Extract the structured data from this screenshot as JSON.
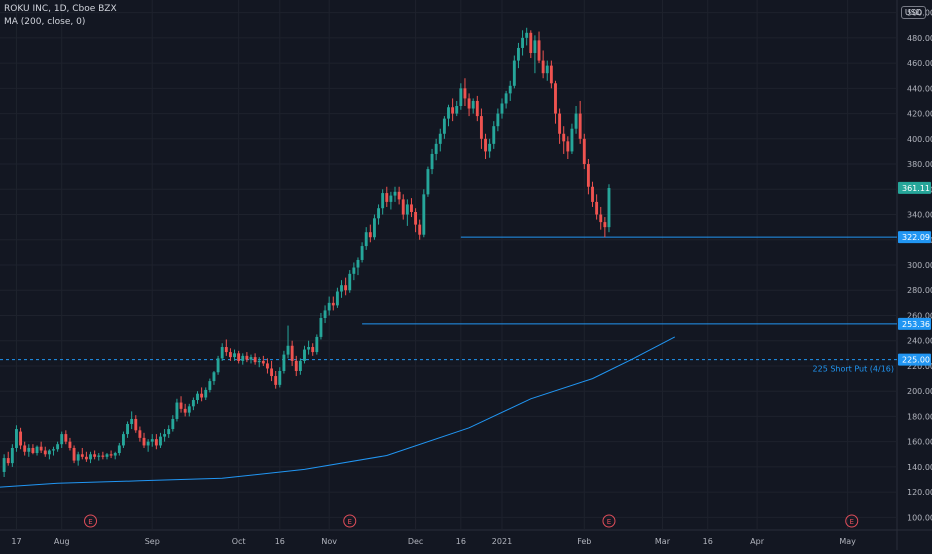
{
  "header": {
    "symbol_line": "ROKU INC, 1D, Cboe BZX",
    "indicator_line": "MA (200, close, 0)",
    "currency": "USD"
  },
  "colors": {
    "background": "#131722",
    "grid": "#1e222d",
    "up": "#26a69a",
    "down": "#ef5350",
    "ma": "#2196f3",
    "level": "#2196f3",
    "axis_text": "#b2b5be"
  },
  "chart_data": {
    "type": "candlestick",
    "title": "ROKU INC, 1D, Cboe BZX",
    "ylim": [
      90,
      510
    ],
    "y_ticks": [
      100,
      120,
      140,
      160,
      180,
      200,
      220,
      240,
      260,
      280,
      300,
      320,
      340,
      360,
      380,
      400,
      420,
      440,
      460,
      480,
      500
    ],
    "x_ticks": [
      {
        "label": "17",
        "day": 0
      },
      {
        "label": "Aug",
        "day": 11
      },
      {
        "label": "Sep",
        "day": 33
      },
      {
        "label": "Oct",
        "day": 54
      },
      {
        "label": "16",
        "day": 64
      },
      {
        "label": "Nov",
        "day": 76
      },
      {
        "label": "Dec",
        "day": 97
      },
      {
        "label": "16",
        "day": 108
      },
      {
        "label": "2021",
        "day": 118
      },
      {
        "label": "Feb",
        "day": 138
      },
      {
        "label": "Mar",
        "day": 157
      },
      {
        "label": "16",
        "day": 168
      },
      {
        "label": "Apr",
        "day": 180
      },
      {
        "label": "May",
        "day": 202
      }
    ],
    "x_range_days": [
      -4,
      214
    ],
    "last_price": {
      "value": 361.11,
      "label": "361.11"
    },
    "horizontal_levels": [
      {
        "value": 322.09,
        "label": "322.09",
        "start_day": 108,
        "style": "solid"
      },
      {
        "value": 253.36,
        "label": "253.36",
        "start_day": 84,
        "style": "solid"
      },
      {
        "value": 225.0,
        "label": "225.00",
        "start_day": -4,
        "style": "dashed",
        "annotation": "225 Short Put (4/16)"
      }
    ],
    "earnings_markers": [
      {
        "label": "E",
        "day": 18
      },
      {
        "label": "E",
        "day": 81
      },
      {
        "label": "E",
        "day": 144
      },
      {
        "label": "E",
        "day": 203
      }
    ],
    "ma_series": {
      "name": "MA (200, close, 0)",
      "points": [
        [
          -4,
          124
        ],
        [
          10,
          127
        ],
        [
          30,
          129
        ],
        [
          50,
          131
        ],
        [
          70,
          138
        ],
        [
          90,
          149
        ],
        [
          110,
          171
        ],
        [
          125,
          194
        ],
        [
          140,
          210
        ],
        [
          150,
          226
        ],
        [
          160,
          243
        ]
      ]
    },
    "candles": [
      [
        -3,
        136,
        150,
        132,
        147
      ],
      [
        -2,
        147,
        152,
        141,
        143
      ],
      [
        -1,
        143,
        158,
        140,
        155
      ],
      [
        0,
        155,
        173,
        152,
        170
      ],
      [
        1,
        168,
        171,
        154,
        157
      ],
      [
        2,
        157,
        160,
        149,
        152
      ],
      [
        3,
        152,
        158,
        148,
        155
      ],
      [
        4,
        155,
        158,
        150,
        151
      ],
      [
        5,
        151,
        157,
        149,
        156
      ],
      [
        6,
        156,
        160,
        151,
        153
      ],
      [
        7,
        153,
        156,
        148,
        150
      ],
      [
        8,
        150,
        154,
        146,
        153
      ],
      [
        9,
        153,
        156,
        149,
        154
      ],
      [
        10,
        154,
        160,
        152,
        158
      ],
      [
        11,
        158,
        168,
        155,
        166
      ],
      [
        12,
        166,
        169,
        158,
        160
      ],
      [
        13,
        160,
        163,
        153,
        155
      ],
      [
        14,
        155,
        157,
        143,
        145
      ],
      [
        15,
        145,
        152,
        141,
        150
      ],
      [
        16,
        150,
        155,
        146,
        148
      ],
      [
        17,
        148,
        152,
        144,
        146
      ],
      [
        18,
        146,
        152,
        143,
        150
      ],
      [
        19,
        150,
        153,
        146,
        148
      ],
      [
        20,
        148,
        151,
        145,
        149
      ],
      [
        21,
        149,
        152,
        146,
        148
      ],
      [
        22,
        148,
        151,
        146,
        150
      ],
      [
        23,
        150,
        153,
        147,
        149
      ],
      [
        24,
        149,
        152,
        146,
        151
      ],
      [
        25,
        151,
        159,
        149,
        157
      ],
      [
        26,
        157,
        168,
        155,
        166
      ],
      [
        27,
        166,
        176,
        163,
        174
      ],
      [
        28,
        174,
        184,
        170,
        178
      ],
      [
        29,
        178,
        181,
        167,
        169
      ],
      [
        30,
        169,
        172,
        160,
        163
      ],
      [
        31,
        163,
        167,
        155,
        157
      ],
      [
        32,
        157,
        162,
        152,
        160
      ],
      [
        33,
        160,
        166,
        156,
        162
      ],
      [
        34,
        162,
        166,
        154,
        157
      ],
      [
        35,
        157,
        167,
        155,
        164
      ],
      [
        36,
        164,
        170,
        160,
        166
      ],
      [
        37,
        166,
        173,
        163,
        170
      ],
      [
        38,
        170,
        181,
        168,
        178
      ],
      [
        39,
        178,
        194,
        176,
        191
      ],
      [
        40,
        191,
        196,
        183,
        186
      ],
      [
        41,
        186,
        190,
        180,
        183
      ],
      [
        42,
        183,
        190,
        180,
        188
      ],
      [
        43,
        188,
        195,
        185,
        193
      ],
      [
        44,
        193,
        200,
        190,
        198
      ],
      [
        45,
        198,
        203,
        192,
        195
      ],
      [
        46,
        195,
        203,
        193,
        201
      ],
      [
        47,
        201,
        210,
        199,
        208
      ],
      [
        48,
        208,
        216,
        205,
        215
      ],
      [
        49,
        215,
        228,
        213,
        226
      ],
      [
        50,
        226,
        238,
        224,
        235
      ],
      [
        51,
        235,
        241,
        228,
        231
      ],
      [
        52,
        231,
        234,
        224,
        227
      ],
      [
        53,
        227,
        233,
        224,
        230
      ],
      [
        54,
        230,
        232,
        222,
        224
      ],
      [
        55,
        224,
        230,
        221,
        228
      ],
      [
        56,
        228,
        231,
        223,
        225
      ],
      [
        57,
        225,
        229,
        222,
        227
      ],
      [
        58,
        227,
        230,
        221,
        223
      ],
      [
        59,
        223,
        227,
        219,
        224
      ],
      [
        60,
        224,
        228,
        220,
        222
      ],
      [
        61,
        222,
        226,
        214,
        218
      ],
      [
        62,
        218,
        224,
        208,
        212
      ],
      [
        63,
        212,
        216,
        202,
        205
      ],
      [
        64,
        205,
        219,
        203,
        216
      ],
      [
        65,
        216,
        232,
        214,
        229
      ],
      [
        66,
        229,
        252,
        226,
        236
      ],
      [
        67,
        236,
        240,
        220,
        224
      ],
      [
        68,
        224,
        228,
        212,
        216
      ],
      [
        69,
        216,
        226,
        213,
        224
      ],
      [
        70,
        224,
        236,
        222,
        233
      ],
      [
        71,
        233,
        240,
        229,
        235
      ],
      [
        72,
        235,
        238,
        228,
        231
      ],
      [
        73,
        231,
        245,
        229,
        243
      ],
      [
        74,
        243,
        262,
        241,
        258
      ],
      [
        75,
        258,
        268,
        254,
        264
      ],
      [
        76,
        264,
        275,
        260,
        270
      ],
      [
        77,
        270,
        275,
        264,
        268
      ],
      [
        78,
        268,
        282,
        266,
        279
      ],
      [
        79,
        279,
        288,
        274,
        284
      ],
      [
        80,
        284,
        290,
        276,
        280
      ],
      [
        81,
        280,
        296,
        278,
        293
      ],
      [
        82,
        293,
        302,
        288,
        298
      ],
      [
        83,
        298,
        306,
        292,
        304
      ],
      [
        84,
        304,
        318,
        302,
        315
      ],
      [
        85,
        315,
        330,
        312,
        326
      ],
      [
        86,
        326,
        332,
        318,
        322
      ],
      [
        87,
        322,
        340,
        320,
        337
      ],
      [
        88,
        337,
        348,
        332,
        345
      ],
      [
        89,
        345,
        360,
        340,
        357
      ],
      [
        90,
        357,
        362,
        346,
        350
      ],
      [
        91,
        350,
        358,
        344,
        355
      ],
      [
        92,
        355,
        362,
        350,
        358
      ],
      [
        93,
        358,
        362,
        348,
        352
      ],
      [
        94,
        352,
        356,
        336,
        340
      ],
      [
        95,
        340,
        352,
        331,
        348
      ],
      [
        96,
        348,
        353,
        338,
        342
      ],
      [
        97,
        342,
        345,
        326,
        332
      ],
      [
        98,
        332,
        336,
        320,
        324
      ],
      [
        99,
        324,
        360,
        322,
        356
      ],
      [
        100,
        356,
        378,
        354,
        376
      ],
      [
        101,
        376,
        392,
        372,
        388
      ],
      [
        102,
        388,
        400,
        383,
        396
      ],
      [
        103,
        396,
        408,
        390,
        404
      ],
      [
        104,
        404,
        418,
        400,
        416
      ],
      [
        105,
        416,
        427,
        410,
        425
      ],
      [
        106,
        425,
        432,
        414,
        420
      ],
      [
        107,
        420,
        430,
        418,
        426
      ],
      [
        108,
        426,
        444,
        423,
        440
      ],
      [
        109,
        440,
        448,
        426,
        432
      ],
      [
        110,
        432,
        436,
        418,
        424
      ],
      [
        111,
        424,
        432,
        420,
        430
      ],
      [
        112,
        430,
        434,
        414,
        418
      ],
      [
        113,
        418,
        424,
        392,
        400
      ],
      [
        114,
        400,
        404,
        384,
        390
      ],
      [
        115,
        390,
        400,
        385,
        396
      ],
      [
        116,
        396,
        414,
        392,
        410
      ],
      [
        117,
        410,
        424,
        406,
        420
      ],
      [
        118,
        420,
        432,
        416,
        428
      ],
      [
        119,
        428,
        438,
        424,
        436
      ],
      [
        120,
        436,
        446,
        430,
        442
      ],
      [
        121,
        442,
        466,
        440,
        462
      ],
      [
        122,
        462,
        476,
        456,
        472
      ],
      [
        123,
        472,
        486,
        466,
        480
      ],
      [
        124,
        480,
        488,
        474,
        484
      ],
      [
        125,
        484,
        486,
        464,
        468
      ],
      [
        126,
        468,
        482,
        452,
        478
      ],
      [
        127,
        478,
        485,
        460,
        462
      ],
      [
        128,
        462,
        470,
        448,
        452
      ],
      [
        129,
        452,
        462,
        446,
        458
      ],
      [
        130,
        458,
        462,
        440,
        444
      ],
      [
        131,
        444,
        446,
        412,
        420
      ],
      [
        132,
        420,
        424,
        396,
        404
      ],
      [
        133,
        404,
        410,
        388,
        398
      ],
      [
        134,
        398,
        402,
        384,
        390
      ],
      [
        135,
        390,
        412,
        388,
        408
      ],
      [
        136,
        408,
        426,
        404,
        420
      ],
      [
        137,
        420,
        430,
        396,
        400
      ],
      [
        138,
        400,
        404,
        376,
        380
      ],
      [
        139,
        380,
        384,
        356,
        362
      ],
      [
        140,
        362,
        366,
        346,
        350
      ],
      [
        141,
        350,
        356,
        336,
        340
      ],
      [
        142,
        340,
        346,
        328,
        334
      ],
      [
        143,
        334,
        338,
        322,
        330
      ],
      [
        144,
        330,
        364,
        326,
        361
      ]
    ]
  }
}
